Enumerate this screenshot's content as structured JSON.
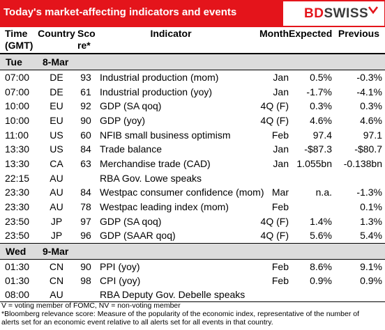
{
  "header": {
    "title": "Today's market-affecting indicators and events",
    "logo_bd": "BD",
    "logo_swiss": "SWISS",
    "accent_color": "#e4141b"
  },
  "columns": {
    "time": "Time (GMT)",
    "time_line1": "Time",
    "time_line2": "(GMT)",
    "country": "Country",
    "score_line1": "Sco",
    "score_line2": "re*",
    "indicator": "Indicator",
    "month": "Month",
    "expected": "Expected",
    "previous": "Previous"
  },
  "days": [
    {
      "day": "Tue",
      "date": "8-Mar",
      "rows": [
        {
          "time": "07:00",
          "country": "DE",
          "score": "93",
          "indicator": "Industrial production (mom)",
          "month": "Jan",
          "expected": "0.5%",
          "previous": "-0.3%"
        },
        {
          "time": "07:00",
          "country": "DE",
          "score": "61",
          "indicator": "Industrial production (yoy)",
          "month": "Jan",
          "expected": "-1.7%",
          "previous": "-4.1%"
        },
        {
          "time": "10:00",
          "country": "EU",
          "score": "92",
          "indicator": "GDP (SA qoq)",
          "month": "4Q (F)",
          "expected": "0.3%",
          "previous": "0.3%"
        },
        {
          "time": "10:00",
          "country": "EU",
          "score": "90",
          "indicator": "GDP (yoy)",
          "month": "4Q (F)",
          "expected": "4.6%",
          "previous": "4.6%"
        },
        {
          "time": "11:00",
          "country": "US",
          "score": "60",
          "indicator": "NFIB small business optimism",
          "month": "Feb",
          "expected": "97.4",
          "previous": "97.1"
        },
        {
          "time": "13:30",
          "country": "US",
          "score": "84",
          "indicator": "Trade balance",
          "month": "Jan",
          "expected": "-$87.3",
          "previous": "-$80.7"
        },
        {
          "time": "13:30",
          "country": "CA",
          "score": "63",
          "indicator": "Merchandise trade (CAD)",
          "month": "Jan",
          "expected": "1.055bn",
          "previous": "-0.138bn"
        },
        {
          "time": "22:15",
          "country": "AU",
          "score": "",
          "indicator": "RBA Gov. Lowe speaks",
          "month": "",
          "expected": "",
          "previous": ""
        },
        {
          "time": "23:30",
          "country": "AU",
          "score": "84",
          "indicator": "Westpac consumer confidence (mom)",
          "month": "Mar",
          "expected": "n.a.",
          "previous": "-1.3%"
        },
        {
          "time": "23:30",
          "country": "AU",
          "score": "78",
          "indicator": "Westpac leading index (mom)",
          "month": "Feb",
          "expected": "",
          "previous": "0.1%"
        },
        {
          "time": "23:50",
          "country": "JP",
          "score": "97",
          "indicator": "GDP (SA qoq)",
          "month": "4Q (F)",
          "expected": "1.4%",
          "previous": "1.3%"
        },
        {
          "time": "23:50",
          "country": "JP",
          "score": "96",
          "indicator": "GDP (SAAR qoq)",
          "month": "4Q (F)",
          "expected": "5.6%",
          "previous": "5.4%"
        }
      ]
    },
    {
      "day": "Wed",
      "date": "9-Mar",
      "rows": [
        {
          "time": "01:30",
          "country": "CN",
          "score": "90",
          "indicator": "PPI (yoy)",
          "month": "Feb",
          "expected": "8.6%",
          "previous": "9.1%"
        },
        {
          "time": "01:30",
          "country": "CN",
          "score": "98",
          "indicator": "CPI (yoy)",
          "month": "Feb",
          "expected": "0.9%",
          "previous": "0.9%"
        },
        {
          "time": "08:00",
          "country": "AU",
          "score": "",
          "indicator": "RBA Deputy Gov. Debelle speaks",
          "month": "",
          "expected": "",
          "previous": ""
        }
      ]
    }
  ],
  "footer": {
    "line1": "V = voting member of FOMC, NV = non-voting member",
    "line2": "*Bloomberg relevance score:  Measure of the popularity of the economic index, representative of the number of",
    "line3": "alerts set for an economic event relative to all alerts set for all events in that country."
  }
}
